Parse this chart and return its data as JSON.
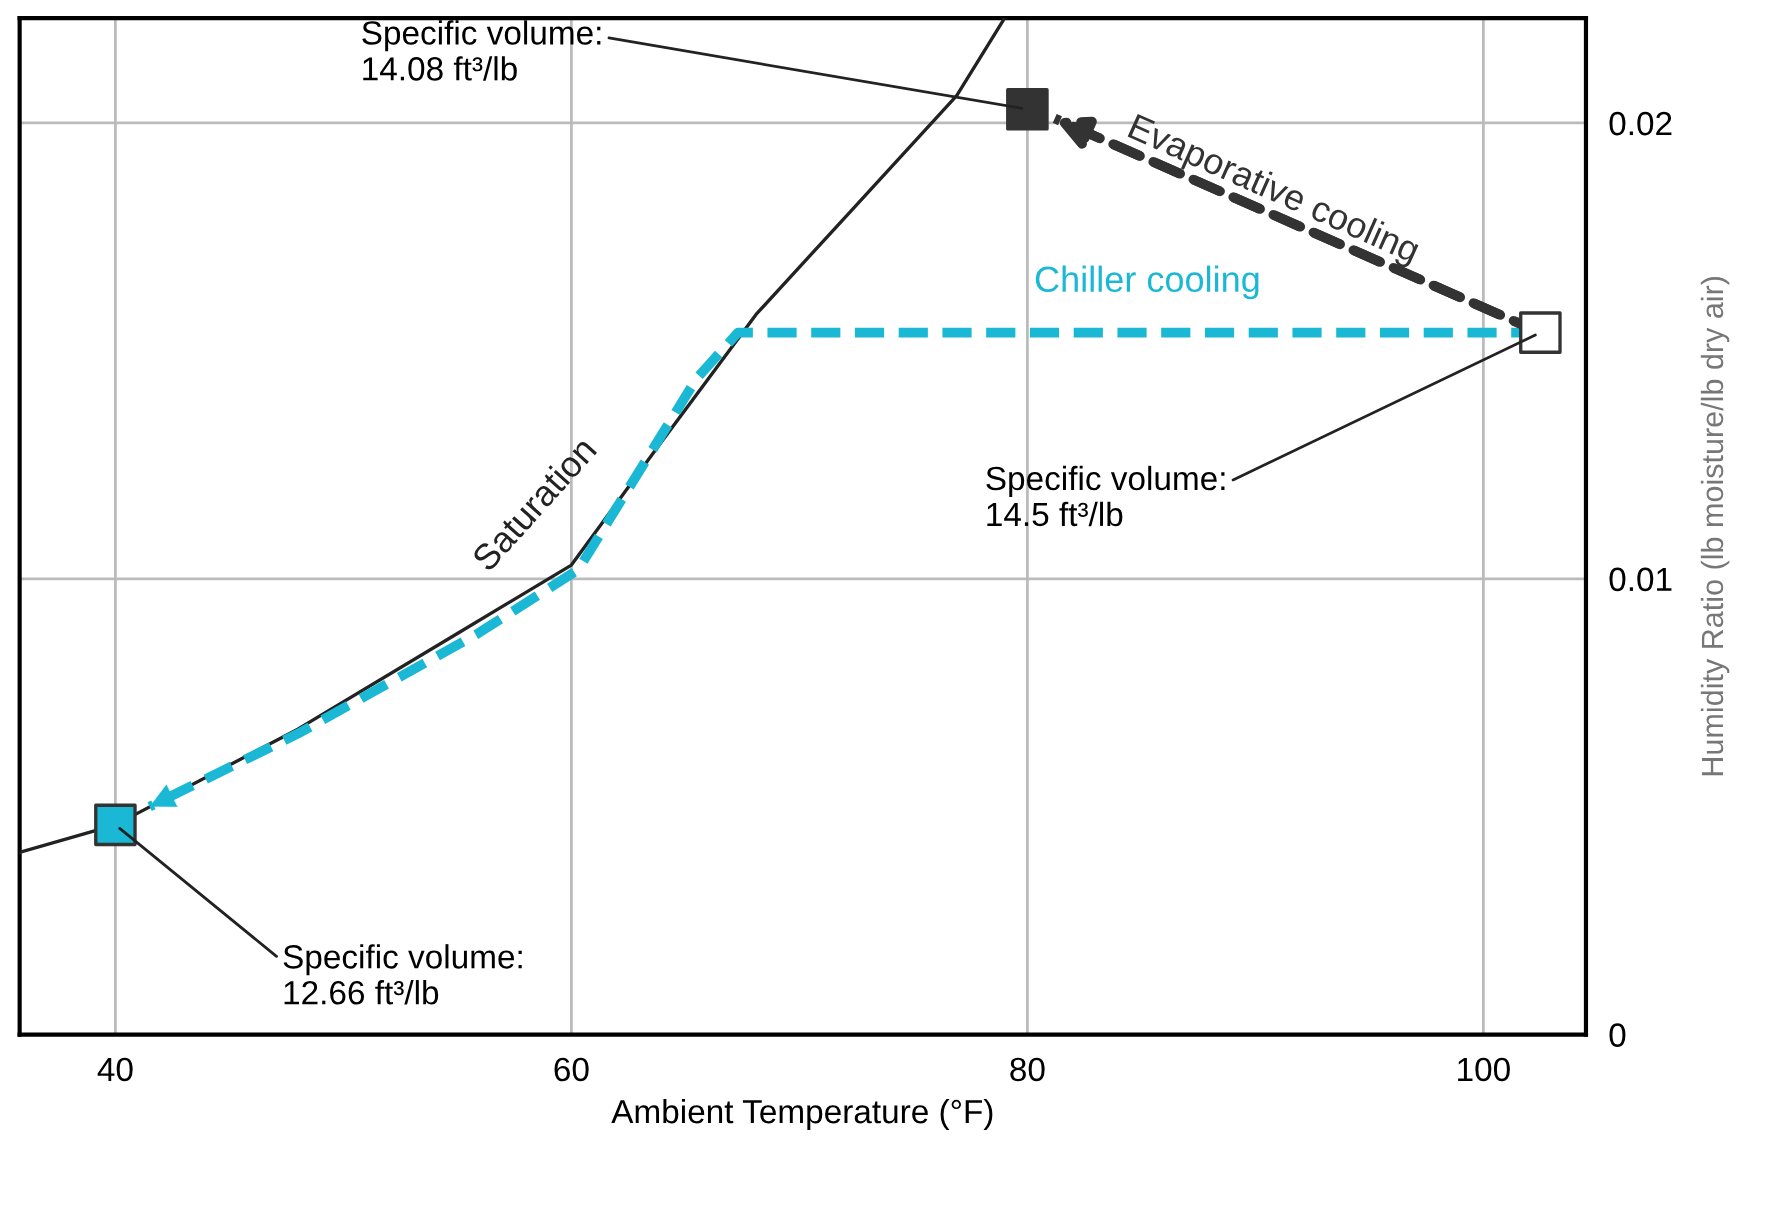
{
  "chart_data": {
    "type": "line",
    "xlabel": "Ambient Temperature (°F)",
    "ylabel": "Humidity Ratio (lb moisture/lb dry air)",
    "xlim": [
      35.8,
      104.5
    ],
    "ylim": [
      0,
      0.0223
    ],
    "xticks": [
      40,
      60,
      80,
      100
    ],
    "yticks": [
      0,
      0.01,
      0.02
    ],
    "grid": true,
    "series": [
      {
        "name": "Saturation",
        "color": "#222222",
        "line_style": "solid",
        "marker": "none",
        "x": [
          35.8,
          40,
          48,
          55,
          60,
          63.8,
          68.1,
          72.5,
          76.9,
          79.0
        ],
        "values": [
          0.004,
          0.0046,
          0.0067,
          0.0088,
          0.0103,
          0.0129,
          0.0158,
          0.0182,
          0.0206,
          0.0223
        ]
      },
      {
        "name": "Chiller cooling",
        "color": "#1ab8d4",
        "line_style": "dashed",
        "marker": "none",
        "x": [
          102.5,
          67.3,
          65.5,
          60.3,
          55.9,
          48,
          41.5
        ],
        "values": [
          0.0154,
          0.0154,
          0.0144,
          0.0102,
          0.0088,
          0.0066,
          0.005
        ]
      },
      {
        "name": "Evaporative cooling",
        "color": "#333333",
        "line_style": "dashed",
        "marker": "none",
        "x": [
          102.5,
          81.2
        ],
        "values": [
          0.0154,
          0.0201
        ]
      },
      {
        "type": "scatter",
        "marker": "square",
        "x": [
          40,
          80,
          102.5
        ],
        "values": [
          0.0046,
          0.0203,
          0.0154
        ],
        "colors": [
          "#1ab8d4",
          "#333333",
          "#ffffff"
        ]
      }
    ],
    "annotations": [
      {
        "text": "Specific volume:\n14.08 ft³/lb",
        "x": 80,
        "y": 0.0203
      },
      {
        "text": "Specific volume:\n14.5 ft³/lb",
        "x": 102.5,
        "y": 0.0154
      },
      {
        "text": "Specific volume:\n12.66 ft³/lb",
        "x": 40,
        "y": 0.0046
      }
    ]
  }
}
